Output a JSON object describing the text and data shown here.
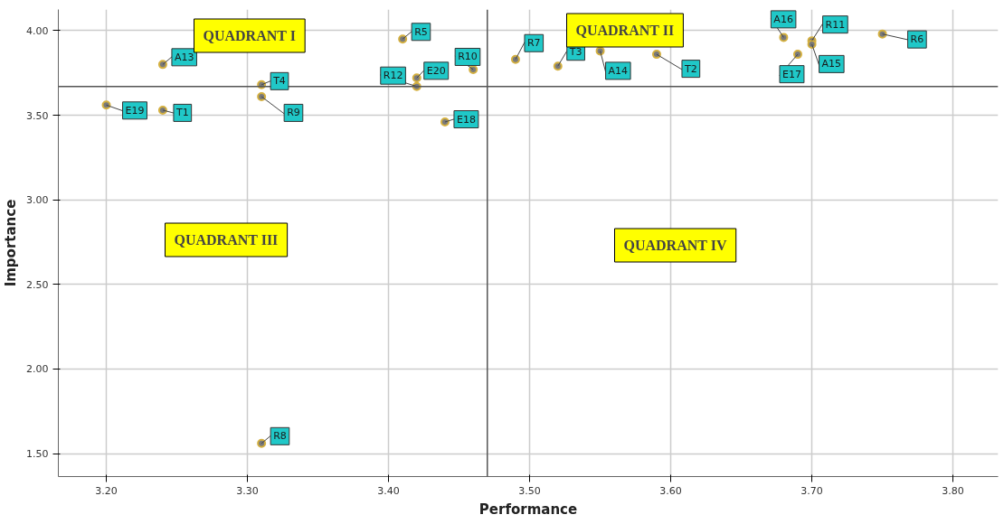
{
  "chart_data": {
    "type": "scatter",
    "xlabel": "Performance",
    "ylabel": "Importance",
    "x": [
      3.2,
      3.24,
      3.24,
      3.31,
      3.31,
      3.31,
      3.41,
      3.42,
      3.42,
      3.46,
      3.44,
      3.49,
      3.52,
      3.55,
      3.59,
      3.68,
      3.69,
      3.7,
      3.7,
      3.75
    ],
    "series": [
      {
        "color": "#d4b040",
        "values": [
          3.56,
          3.53,
          3.8,
          3.68,
          3.61,
          1.56,
          3.95,
          3.67,
          3.72,
          3.77,
          3.46,
          3.83,
          3.79,
          3.88,
          3.86,
          3.96,
          3.86,
          3.94,
          3.92,
          3.98
        ]
      }
    ],
    "value_labels": [
      "E19",
      "T1",
      "A13",
      "T4",
      "R9",
      "R8",
      "R5",
      "R12",
      "E20",
      "R10",
      "E18",
      "R7",
      "T3",
      "A14",
      "T2",
      "A16",
      "E17",
      "R11",
      "A15",
      "R6"
    ],
    "xlim": [
      3.166,
      3.832
    ],
    "ylim": [
      1.364,
      4.125
    ],
    "xticks": [
      {
        "value": 3.2,
        "label": "3.20"
      },
      {
        "value": 3.3,
        "label": "3.30"
      },
      {
        "value": 3.4,
        "label": "3.40"
      },
      {
        "value": 3.5,
        "label": "3.50"
      },
      {
        "value": 3.6,
        "label": "3.60"
      },
      {
        "value": 3.7,
        "label": "3.70"
      },
      {
        "value": 3.8,
        "label": "3.80"
      }
    ],
    "yticks": [
      {
        "value": 1.5,
        "label": "1.50"
      },
      {
        "value": 2.0,
        "label": "2.00"
      },
      {
        "value": 2.5,
        "label": "2.50"
      },
      {
        "value": 3.0,
        "label": "3.00"
      },
      {
        "value": 3.5,
        "label": "3.50"
      },
      {
        "value": 4.0,
        "label": "4.00"
      }
    ],
    "ref_lines": [
      {
        "axis": "x",
        "value": 3.47,
        "color": "#555555"
      },
      {
        "axis": "y",
        "value": 3.67,
        "color": "#555555"
      }
    ],
    "annotations": [
      "QUADRANT I",
      "QUADRANT II",
      "QUADRANT III",
      "QUADRANT IV"
    ],
    "grid": true,
    "marker": "circle"
  }
}
